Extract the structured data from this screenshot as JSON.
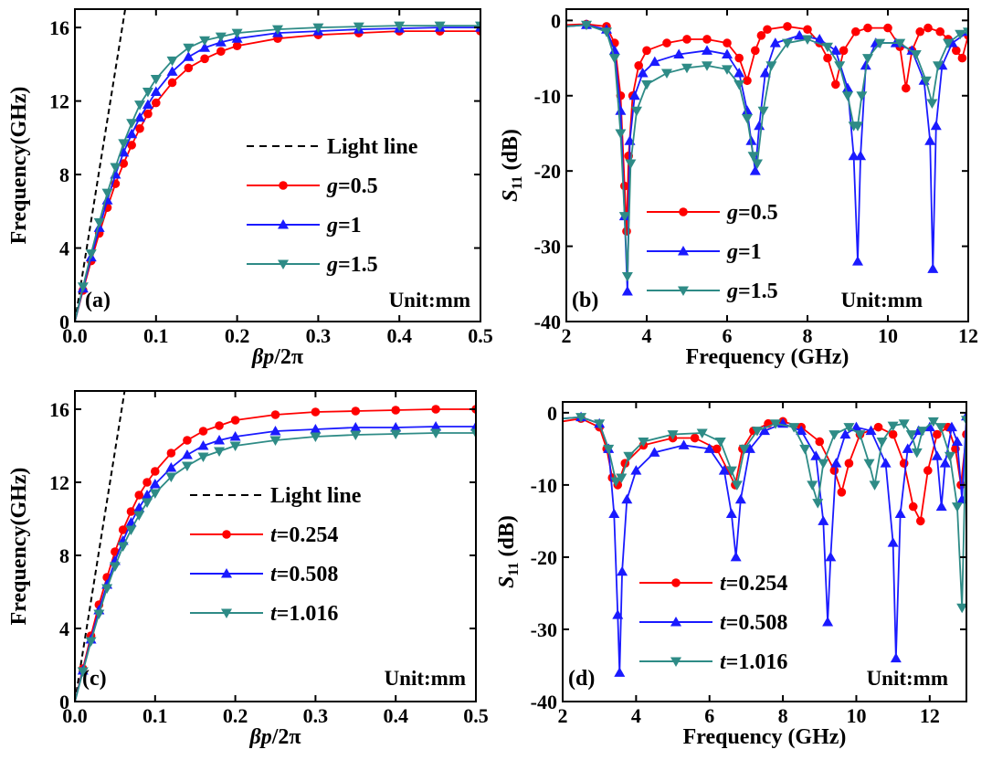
{
  "chart_data": [
    {
      "panel": "(a)",
      "type": "line",
      "xlabel": "βp/2π",
      "ylabel": "Frequency(GHz)",
      "xlim": [
        0,
        0.5
      ],
      "ylim": [
        0,
        17
      ],
      "xticks": [
        "0.0",
        "0.1",
        "0.2",
        "0.3",
        "0.4",
        "0.5"
      ],
      "yticks": [
        "0",
        "4",
        "8",
        "12",
        "16"
      ],
      "annotation": "Unit:mm",
      "legend_var": "g",
      "legend_placement": "center-right",
      "light_line": {
        "name": "Light line",
        "x": [
          0,
          0.062
        ],
        "y": [
          0,
          17
        ]
      },
      "series": [
        {
          "name": "=0.5",
          "var": "g",
          "color": "#ff0000",
          "marker": "circle",
          "x": [
            0,
            0.01,
            0.02,
            0.03,
            0.04,
            0.05,
            0.06,
            0.07,
            0.08,
            0.09,
            0.1,
            0.12,
            0.14,
            0.16,
            0.18,
            0.2,
            0.25,
            0.3,
            0.35,
            0.4,
            0.45,
            0.5
          ],
          "y": [
            0,
            1.7,
            3.3,
            4.8,
            6.2,
            7.5,
            8.6,
            9.6,
            10.5,
            11.3,
            11.9,
            13.0,
            13.8,
            14.3,
            14.7,
            15.0,
            15.4,
            15.6,
            15.7,
            15.8,
            15.8,
            15.8
          ]
        },
        {
          "name": "=1",
          "var": "g",
          "color": "#1a1aff",
          "marker": "triangle-up",
          "x": [
            0,
            0.01,
            0.02,
            0.03,
            0.04,
            0.05,
            0.06,
            0.07,
            0.08,
            0.09,
            0.1,
            0.12,
            0.14,
            0.16,
            0.18,
            0.2,
            0.25,
            0.3,
            0.35,
            0.4,
            0.45,
            0.5
          ],
          "y": [
            0,
            1.8,
            3.5,
            5.1,
            6.6,
            8.0,
            9.2,
            10.2,
            11.1,
            11.8,
            12.5,
            13.6,
            14.4,
            14.9,
            15.2,
            15.4,
            15.7,
            15.8,
            15.9,
            15.95,
            16.0,
            16.0
          ]
        },
        {
          "name": "=1.5",
          "var": "g",
          "color": "#2e8b86",
          "marker": "triangle-down",
          "x": [
            0,
            0.01,
            0.02,
            0.03,
            0.04,
            0.05,
            0.06,
            0.07,
            0.08,
            0.09,
            0.1,
            0.12,
            0.14,
            0.16,
            0.18,
            0.2,
            0.25,
            0.3,
            0.35,
            0.4,
            0.45,
            0.5
          ],
          "y": [
            0,
            1.9,
            3.7,
            5.4,
            7.0,
            8.4,
            9.7,
            10.8,
            11.8,
            12.5,
            13.2,
            14.2,
            14.9,
            15.3,
            15.5,
            15.7,
            15.9,
            16.0,
            16.05,
            16.1,
            16.1,
            16.1
          ]
        }
      ]
    },
    {
      "panel": "(b)",
      "type": "line",
      "xlabel": "Frequency (GHz)",
      "ylabel": "S11 (dB)",
      "xlim": [
        2,
        12
      ],
      "ylim": [
        -40,
        1.5
      ],
      "xticks": [
        "2",
        "4",
        "6",
        "8",
        "10",
        "12"
      ],
      "yticks": [
        "0",
        "-10",
        "-20",
        "-30",
        "-40"
      ],
      "annotation": "Unit:mm",
      "legend_var": "g",
      "legend_placement": "bottom-center",
      "series": [
        {
          "name": "=0.5",
          "var": "g",
          "color": "#ff0000",
          "marker": "circle",
          "x": [
            2,
            2.5,
            3.0,
            3.2,
            3.35,
            3.45,
            3.5,
            3.55,
            3.65,
            3.8,
            4.0,
            4.5,
            5.0,
            5.5,
            6.0,
            6.3,
            6.5,
            6.7,
            6.85,
            7.0,
            7.5,
            8.0,
            8.3,
            8.5,
            8.7,
            8.9,
            9.2,
            9.5,
            10.0,
            10.3,
            10.45,
            10.6,
            10.8,
            11.0,
            11.3,
            11.5,
            11.7,
            11.85,
            12
          ],
          "y": [
            -0.6,
            -0.5,
            -0.8,
            -3,
            -10,
            -22,
            -28,
            -18,
            -10,
            -6,
            -4,
            -3,
            -2.5,
            -2.5,
            -3,
            -5,
            -8,
            -4,
            -2,
            -1.2,
            -0.8,
            -1.2,
            -3,
            -5,
            -8.5,
            -4,
            -1.5,
            -1,
            -1,
            -3.5,
            -9,
            -4,
            -1.5,
            -1,
            -1.5,
            -2.5,
            -4,
            -5,
            -2
          ]
        },
        {
          "name": "=1",
          "var": "g",
          "color": "#1a1aff",
          "marker": "triangle-up",
          "x": [
            2,
            2.5,
            3.0,
            3.2,
            3.35,
            3.45,
            3.52,
            3.58,
            3.7,
            3.9,
            4.2,
            4.8,
            5.5,
            6.0,
            6.3,
            6.5,
            6.6,
            6.7,
            6.8,
            6.95,
            7.2,
            7.8,
            8.3,
            8.7,
            9.0,
            9.15,
            9.25,
            9.32,
            9.45,
            9.7,
            10.2,
            10.6,
            10.9,
            11.05,
            11.12,
            11.2,
            11.35,
            11.6,
            12
          ],
          "y": [
            -0.8,
            -0.6,
            -1.2,
            -4,
            -12,
            -26,
            -36,
            -16,
            -10,
            -7,
            -5.5,
            -4.5,
            -4,
            -4.5,
            -7,
            -12,
            -16,
            -20,
            -14,
            -7,
            -3,
            -2,
            -2.5,
            -4,
            -9,
            -18,
            -32,
            -18,
            -6,
            -3,
            -3,
            -4,
            -8,
            -16,
            -33,
            -14,
            -6,
            -3,
            -1.5
          ]
        },
        {
          "name": "=1.5",
          "var": "g",
          "color": "#2e8b86",
          "marker": "triangle-down",
          "x": [
            2,
            2.5,
            3.0,
            3.2,
            3.35,
            3.45,
            3.52,
            3.6,
            3.75,
            4.0,
            4.5,
            5.0,
            5.5,
            6.0,
            6.3,
            6.5,
            6.65,
            6.75,
            6.9,
            7.1,
            7.5,
            8.0,
            8.5,
            8.8,
            9.0,
            9.15,
            9.25,
            9.35,
            9.5,
            9.8,
            10.3,
            10.7,
            10.95,
            11.1,
            11.25,
            11.5,
            11.8,
            12
          ],
          "y": [
            -0.8,
            -0.6,
            -1.5,
            -5,
            -15,
            -26,
            -34,
            -19,
            -12,
            -8.5,
            -7,
            -6.3,
            -6,
            -6.5,
            -8.5,
            -13,
            -18,
            -19,
            -12,
            -6,
            -3,
            -2.5,
            -3.5,
            -6,
            -10,
            -14,
            -14,
            -10,
            -5,
            -3,
            -3,
            -4.5,
            -8,
            -11,
            -6,
            -3,
            -1.8,
            -1.5
          ]
        }
      ]
    },
    {
      "panel": "(c)",
      "type": "line",
      "xlabel": "βp/2π",
      "ylabel": "Frequency(GHz)",
      "xlim": [
        0,
        0.5
      ],
      "ylim": [
        0,
        17
      ],
      "xticks": [
        "0.0",
        "0.1",
        "0.2",
        "0.3",
        "0.4",
        "0.5"
      ],
      "yticks": [
        "0",
        "4",
        "8",
        "12",
        "16"
      ],
      "annotation": "Unit:mm",
      "legend_var": "t",
      "legend_placement": "center",
      "light_line": {
        "name": "Light line",
        "x": [
          0,
          0.062
        ],
        "y": [
          0,
          17
        ]
      },
      "series": [
        {
          "name": "=0.254",
          "var": "t",
          "color": "#ff0000",
          "marker": "circle",
          "x": [
            0,
            0.01,
            0.02,
            0.03,
            0.04,
            0.05,
            0.06,
            0.07,
            0.08,
            0.09,
            0.1,
            0.12,
            0.14,
            0.16,
            0.18,
            0.2,
            0.25,
            0.3,
            0.35,
            0.4,
            0.45,
            0.5
          ],
          "y": [
            0,
            1.8,
            3.6,
            5.3,
            6.8,
            8.2,
            9.4,
            10.4,
            11.3,
            12.0,
            12.6,
            13.6,
            14.3,
            14.8,
            15.1,
            15.4,
            15.7,
            15.85,
            15.9,
            15.95,
            16.0,
            16.0
          ]
        },
        {
          "name": "=0.508",
          "var": "t",
          "color": "#1a1aff",
          "marker": "triangle-up",
          "x": [
            0,
            0.01,
            0.02,
            0.03,
            0.04,
            0.05,
            0.06,
            0.07,
            0.08,
            0.09,
            0.1,
            0.12,
            0.14,
            0.16,
            0.18,
            0.2,
            0.25,
            0.3,
            0.35,
            0.4,
            0.45,
            0.5
          ],
          "y": [
            0,
            1.7,
            3.4,
            5.0,
            6.4,
            7.7,
            8.8,
            9.8,
            10.6,
            11.3,
            11.9,
            12.8,
            13.5,
            14.0,
            14.3,
            14.5,
            14.8,
            14.9,
            15.0,
            15.0,
            15.05,
            15.05
          ]
        },
        {
          "name": "=1.016",
          "var": "t",
          "color": "#2e8b86",
          "marker": "triangle-down",
          "x": [
            0,
            0.01,
            0.02,
            0.03,
            0.04,
            0.05,
            0.06,
            0.07,
            0.08,
            0.09,
            0.1,
            0.12,
            0.14,
            0.16,
            0.18,
            0.2,
            0.25,
            0.3,
            0.35,
            0.4,
            0.45,
            0.5
          ],
          "y": [
            0,
            1.65,
            3.3,
            4.8,
            6.2,
            7.4,
            8.5,
            9.4,
            10.2,
            10.9,
            11.4,
            12.3,
            12.9,
            13.4,
            13.7,
            14.0,
            14.3,
            14.5,
            14.6,
            14.65,
            14.7,
            14.7
          ]
        }
      ]
    },
    {
      "panel": "(d)",
      "type": "line",
      "xlabel": "Frequency (GHz)",
      "ylabel": "S11 (dB)",
      "xlim": [
        2,
        13
      ],
      "ylim": [
        -40,
        1.5
      ],
      "xticks": [
        "2",
        "4",
        "6",
        "8",
        "10",
        "12"
      ],
      "yticks": [
        "0",
        "-10",
        "-20",
        "-30",
        "-40"
      ],
      "annotation": "Unit:mm",
      "legend_var": "t",
      "legend_placement": "bottom-center",
      "series": [
        {
          "name": "=0.254",
          "var": "t",
          "color": "#ff0000",
          "marker": "circle",
          "x": [
            2,
            2.5,
            3.0,
            3.2,
            3.35,
            3.5,
            3.7,
            4.2,
            5.0,
            5.6,
            6.2,
            6.5,
            6.7,
            6.9,
            7.2,
            7.6,
            8.0,
            8.5,
            9.0,
            9.4,
            9.6,
            9.8,
            10.1,
            10.6,
            11.0,
            11.3,
            11.55,
            11.75,
            11.95,
            12.2,
            12.5,
            12.7,
            12.85,
            13
          ],
          "y": [
            -1.2,
            -0.8,
            -2,
            -5,
            -9,
            -10,
            -7,
            -4.5,
            -3.5,
            -3.5,
            -5,
            -8,
            -10,
            -5,
            -2.5,
            -1.5,
            -1.2,
            -2,
            -4,
            -8,
            -11,
            -7,
            -3,
            -2,
            -3,
            -7,
            -13,
            -15,
            -8,
            -3,
            -2,
            -5,
            -10,
            -3
          ]
        },
        {
          "name": "=0.508",
          "var": "t",
          "color": "#1a1aff",
          "marker": "triangle-up",
          "x": [
            2,
            2.5,
            3.0,
            3.25,
            3.4,
            3.5,
            3.55,
            3.62,
            3.75,
            4.0,
            4.5,
            5.3,
            6.0,
            6.4,
            6.6,
            6.72,
            6.85,
            7.1,
            7.5,
            8.0,
            8.5,
            8.9,
            9.1,
            9.22,
            9.3,
            9.45,
            9.7,
            10.0,
            10.4,
            10.8,
            11.0,
            11.08,
            11.2,
            11.4,
            11.7,
            12.0,
            12.2,
            12.32,
            12.42,
            12.6,
            12.75,
            12.88,
            13
          ],
          "y": [
            -0.8,
            -0.6,
            -1.5,
            -5,
            -14,
            -28,
            -36,
            -22,
            -12,
            -8,
            -5.5,
            -4.5,
            -5,
            -8,
            -14,
            -20,
            -12,
            -5,
            -2.5,
            -1.5,
            -2.5,
            -6,
            -15,
            -29,
            -20,
            -7,
            -3,
            -2,
            -2.5,
            -7,
            -18,
            -34,
            -14,
            -5,
            -2.5,
            -2,
            -6,
            -13,
            -7,
            -2,
            -4,
            -12,
            -0.5
          ]
        },
        {
          "name": "=1.016",
          "var": "t",
          "color": "#2e8b86",
          "marker": "triangle-down",
          "x": [
            2,
            2.5,
            3.0,
            3.25,
            3.45,
            3.6,
            3.8,
            4.2,
            5.0,
            5.8,
            6.3,
            6.6,
            6.75,
            6.95,
            7.3,
            7.8,
            8.3,
            8.6,
            8.8,
            8.95,
            9.1,
            9.4,
            9.8,
            10.1,
            10.35,
            10.5,
            10.7,
            11.0,
            11.3,
            11.5,
            11.65,
            11.8,
            12.1,
            12.3,
            12.55,
            12.75,
            12.88,
            13
          ],
          "y": [
            -0.8,
            -0.6,
            -1.5,
            -5,
            -9.5,
            -9,
            -6,
            -4,
            -3,
            -2.8,
            -4,
            -8,
            -10,
            -5,
            -2.5,
            -1.5,
            -2,
            -5,
            -10,
            -12.5,
            -7,
            -3,
            -2,
            -3,
            -7,
            -10,
            -4,
            -1.8,
            -1.5,
            -3,
            -5.5,
            -2.5,
            -1.2,
            -2,
            -6,
            -13,
            -27,
            -1
          ]
        }
      ]
    }
  ]
}
